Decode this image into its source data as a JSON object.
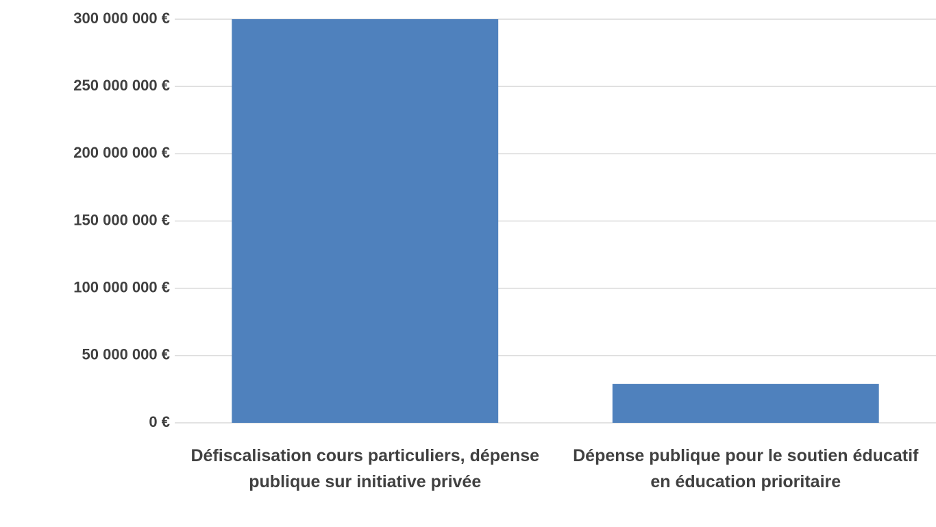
{
  "chart_data": {
    "type": "bar",
    "categories": [
      "Défiscalisation cours particuliers, dépense publique sur initiative privée",
      "Dépense publique pour le soutien éducatif en éducation prioritaire"
    ],
    "values": [
      300000000,
      29000000
    ],
    "color": "#4f81bd",
    "ylim": [
      0,
      300000000
    ],
    "yticks": [
      {
        "value": 0,
        "label": "0 €"
      },
      {
        "value": 50000000,
        "label": "50 000 000 €"
      },
      {
        "value": 100000000,
        "label": "100 000 000 €"
      },
      {
        "value": 150000000,
        "label": "150 000 000 €"
      },
      {
        "value": 200000000,
        "label": "200 000 000 €"
      },
      {
        "value": 250000000,
        "label": "250 000 000 €"
      },
      {
        "value": 300000000,
        "label": "300 000 000 €"
      }
    ],
    "grid": true
  }
}
